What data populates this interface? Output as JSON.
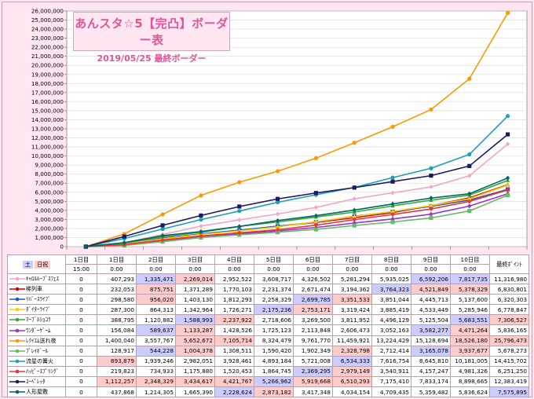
{
  "title": "あんスタ☆5【完凸】ボーダー表",
  "subtitle": "2019/05/25 最終ボーダー",
  "header": {
    "corner_left": "土",
    "corner_right": "日祝",
    "days": [
      "1日目",
      "1日目",
      "2日目",
      "3日目",
      "4日目",
      "5日目",
      "6日目",
      "7日目",
      "8日目",
      "9日目",
      "10日目",
      "最終ﾎﾟｲﾝﾄ"
    ],
    "times": [
      "15:00",
      "0:00",
      "0:00",
      "0:00",
      "0:00",
      "0:00",
      "0:00",
      "0:00",
      "0:00",
      "0:00",
      "0:00",
      ""
    ]
  },
  "chart_data": {
    "type": "line",
    "ylim": [
      0,
      26000000
    ],
    "yticks": [
      "0",
      "1,000,000",
      "2,000,000",
      "3,000,000",
      "4,000,000",
      "5,000,000",
      "6,000,000",
      "7,000,000",
      "8,000,000",
      "9,000,000",
      "10,000,000",
      "11,000,000",
      "12,000,000",
      "13,000,000",
      "14,000,000",
      "15,000,000",
      "16,000,000",
      "17,000,000",
      "18,000,000",
      "19,000,000",
      "20,000,000",
      "21,000,000",
      "22,000,000",
      "23,000,000",
      "24,000,000",
      "25,000,000",
      "26,000,000"
    ],
    "series": [
      {
        "name": "ｷｬﾛﾙﾙｰﾌﾞｽﾌｪｽ",
        "color": "#f4a6c0",
        "marker": "diamond",
        "values": [
          0,
          407293,
          1335471,
          2269014,
          2952522,
          3608717,
          4326502,
          5281294,
          5935025,
          6592206,
          7817735,
          11316980
        ],
        "cells": [
          "0",
          "407,293",
          "1,335,471",
          "2,269,014",
          "2,952,522",
          "3,608,717",
          "4,326,502",
          "5,281,294",
          "5,935,025",
          "6,592,206",
          "7,817,735",
          "11,316,980"
        ],
        "hl": {
          "2": "blue",
          "3": "pink",
          "9": "blue",
          "10": "blue"
        }
      },
      {
        "name": "稀列車",
        "color": "#cc0000",
        "marker": "triangle",
        "values": [
          0,
          232053,
          875751,
          1371289,
          1770103,
          2231374,
          2671474,
          3194362,
          3764323,
          4521849,
          5378329,
          6830801
        ],
        "cells": [
          "0",
          "232,053",
          "875,751",
          "1,371,289",
          "1,770,103",
          "2,231,374",
          "2,671,474",
          "3,194,362",
          "3,764,323",
          "4,521,849",
          "5,378,329",
          "6,830,801"
        ],
        "hl": {
          "2": "pink",
          "8": "blue",
          "9": "pink",
          "10": "pink"
        }
      },
      {
        "name": "ﾘﾊﾞｰｽﾗｲﾌﾞ",
        "color": "#2255cc",
        "marker": "square",
        "values": [
          0,
          298580,
          956020,
          1403130,
          1812293,
          2258329,
          2699785,
          3351533,
          3851044,
          4445713,
          5137600,
          6320303
        ],
        "cells": [
          "0",
          "298,580",
          "956,020",
          "1,403,130",
          "1,812,293",
          "2,258,329",
          "2,699,785",
          "3,351,533",
          "3,851,044",
          "4,445,713",
          "5,137,600",
          "6,320,303"
        ],
        "hl": {
          "2": "pink",
          "6": "blue",
          "7": "pink"
        }
      },
      {
        "name": "ﾀﾞｲﾀｰﾗｲﾌﾞ",
        "color": "#ffcc00",
        "marker": "triangle",
        "values": [
          0,
          287300,
          864313,
          1342964,
          1726271,
          2175236,
          2753171,
          3319424,
          3885419,
          4533449,
          5285946,
          6778847
        ],
        "cells": [
          "0",
          "287,300",
          "864,313",
          "1,342,964",
          "1,726,271",
          "2,175,236",
          "2,753,171",
          "3,319,424",
          "3,885,419",
          "4,533,449",
          "5,285,946",
          "6,778,847"
        ],
        "hl": {
          "5": "blue",
          "6": "pink"
        }
      },
      {
        "name": "ﾏｰﾌﾞﾙｼｮｺﾗ",
        "color": "#33aa33",
        "marker": "triangle",
        "values": [
          0,
          388795,
          1120882,
          1588993,
          2237922,
          2718606,
          3269500,
          3811952,
          4496129,
          5125504,
          5683551,
          7306527
        ],
        "cells": [
          "0",
          "388,795",
          "1,120,882",
          "1,588,993",
          "2,237,922",
          "2,718,606",
          "3,269,500",
          "3,811,952",
          "4,496,129",
          "5,125,504",
          "5,683,551",
          "7,306,527"
        ],
        "hl": {
          "3": "blue",
          "4": "pink",
          "10": "blue",
          "11": "pink"
        }
      },
      {
        "name": "ﾜﾝﾀﾞｰｹﾞｰﾑ",
        "color": "#9933cc",
        "marker": "diamond",
        "values": [
          0,
          156084,
          589637,
          1133287,
          1428526,
          1725123,
          2113848,
          2606473,
          3052163,
          3582277,
          4471264,
          5836165
        ],
        "cells": [
          "0",
          "156,084",
          "589,637",
          "1,133,287",
          "1,428,526",
          "1,725,123",
          "2,113,848",
          "2,606,473",
          "3,052,163",
          "3,582,277",
          "4,471,264",
          "5,836,165"
        ],
        "hl": {
          "2": "blue",
          "3": "pink",
          "9": "blue",
          "10": "pink"
        }
      },
      {
        "name": "ﾚｸｲｴﾑ送れ夜",
        "color": "#ff9900",
        "marker": "circle",
        "values": [
          0,
          1400040,
          3557767,
          5652672,
          7105714,
          8324479,
          9761770,
          11459921,
          13224429,
          15128694,
          18526180,
          25796473
        ],
        "cells": [
          "0",
          "1,400,040",
          "3,557,767",
          "5,652,672",
          "7,105,714",
          "8,324,479",
          "9,761,770",
          "11,459,921",
          "13,224,429",
          "15,128,694",
          "18,526,180",
          "25,796,473"
        ],
        "hl": {
          "3": "pink",
          "4": "pink",
          "10": "pink",
          "11": "pink"
        }
      },
      {
        "name": "ﾌﾟﾚｲﾎﾞｰﾙ",
        "color": "#66bb66",
        "marker": "square",
        "values": [
          0,
          128917,
          544228,
          1004378,
          1308511,
          1590420,
          1902349,
          2328798,
          2712414,
          3165078,
          3937677,
          5678273
        ],
        "cells": [
          "0",
          "128,917",
          "544,228",
          "1,004,378",
          "1,308,511",
          "1,590,420",
          "1,902,349",
          "2,328,798",
          "2,712,414",
          "3,165,078",
          "3,937,677",
          "5,678,273"
        ],
        "hl": {
          "2": "blue",
          "3": "pink",
          "7": "pink",
          "9": "blue",
          "10": "pink"
        }
      },
      {
        "name": "流星の篝火",
        "color": "#1fa0b0",
        "marker": "circle",
        "values": [
          0,
          893879,
          1939246,
          2982051,
          3928461,
          4893184,
          5721008,
          6534333,
          7616754,
          8645810,
          10181005,
          14415702
        ],
        "cells": [
          "0",
          "893,879",
          "1,939,246",
          "2,982,051",
          "3,928,461",
          "4,893,184",
          "5,721,008",
          "6,534,333",
          "7,616,754",
          "8,645,810",
          "10,181,005",
          "14,415,702"
        ],
        "hl": {
          "1": "pink",
          "7": "blue"
        }
      },
      {
        "name": "ﾊｯﾋﾟｰｽﾌﾟﾘﾝｸﾞ",
        "color": "#ee3333",
        "marker": "diamond",
        "values": [
          0,
          219823,
          734933,
          1175880,
          1520453,
          1864745,
          2369295,
          2979149,
          3540911,
          4157247,
          4981326,
          6251250
        ],
        "cells": [
          "0",
          "219,823",
          "734,933",
          "1,175,880",
          "1,520,453",
          "1,864,745",
          "2,369,295",
          "2,979,149",
          "3,540,911",
          "4,157,247",
          "4,981,326",
          "6,251,250"
        ],
        "hl": {
          "6": "blue",
          "7": "pink"
        }
      },
      {
        "name": "ｽｰﾍﾟﾚｯﾀ",
        "color": "#1a1a66",
        "marker": "square",
        "values": [
          0,
          1112257,
          2348329,
          3434617,
          4421767,
          5266962,
          5919668,
          6510293,
          7175410,
          7833174,
          8898665,
          12383419
        ],
        "cells": [
          "0",
          "1,112,257",
          "2,348,329",
          "3,434,617",
          "4,421,767",
          "5,266,962",
          "5,919,668",
          "6,510,293",
          "7,175,410",
          "7,833,174",
          "8,898,665",
          "12,383,419"
        ],
        "hl": {
          "1": "pink",
          "2": "pink",
          "3": "pink",
          "4": "pink",
          "5": "blue",
          "6": "pink",
          "7": "pink"
        }
      },
      {
        "name": "人形屋敷",
        "color": "#006666",
        "marker": "diamond",
        "values": [
          0,
          437868,
          1214305,
          1665390,
          2228624,
          2873182,
          3417348,
          4034154,
          4709435,
          5359482,
          5836624,
          7575895
        ],
        "cells": [
          "0",
          "437,868",
          "1,214,305",
          "1,665,390",
          "2,228,624",
          "2,873,182",
          "3,417,348",
          "4,034,154",
          "4,709,435",
          "5,359,482",
          "5,836,624",
          "7,575,895"
        ],
        "hl": {
          "4": "blue",
          "5": "pink",
          "11": "blue"
        }
      }
    ]
  }
}
